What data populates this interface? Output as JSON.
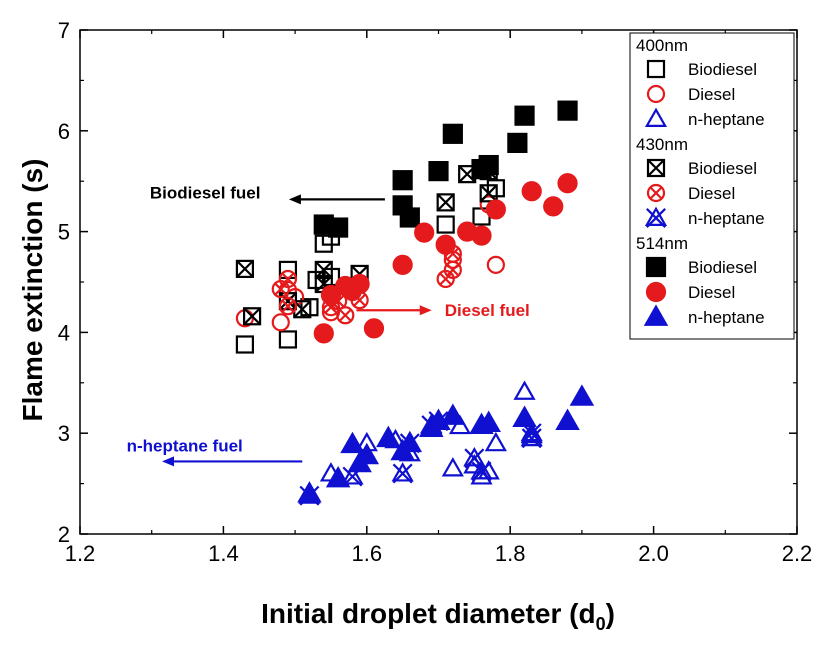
{
  "chart_data": {
    "type": "scatter",
    "xlabel": "Initial droplet diameter (d",
    "xlabel_sub": "0",
    "xlabel_end": ")",
    "ylabel": "Flame extinction (s)",
    "xlim": [
      1.2,
      2.2
    ],
    "ylim": [
      2,
      7
    ],
    "xticks": [
      1.2,
      1.4,
      1.6,
      1.8,
      2.0,
      2.2
    ],
    "yticks": [
      2,
      3,
      4,
      5,
      6,
      7
    ],
    "xtick_labels": [
      "1.2",
      "1.4",
      "1.6",
      "1.8",
      "2.0",
      "2.2"
    ],
    "ytick_labels": [
      "2",
      "3",
      "4",
      "5",
      "6",
      "7"
    ],
    "legend": {
      "placement": "top-right",
      "groups": [
        {
          "title": "400nm",
          "entries": [
            {
              "label": "Biodiesel",
              "marker": "square-open",
              "color": "#000000"
            },
            {
              "label": "Diesel",
              "marker": "circle-open",
              "color": "#e41a1c"
            },
            {
              "label": "n-heptane",
              "marker": "triangle-open",
              "color": "#1010d0"
            }
          ]
        },
        {
          "title": "430nm",
          "entries": [
            {
              "label": "Biodiesel",
              "marker": "square-x",
              "color": "#000000"
            },
            {
              "label": "Diesel",
              "marker": "circle-x",
              "color": "#e41a1c"
            },
            {
              "label": "n-heptane",
              "marker": "triangle-x",
              "color": "#1010d0"
            }
          ]
        },
        {
          "title": "514nm",
          "entries": [
            {
              "label": "Biodiesel",
              "marker": "square-filled",
              "color": "#000000"
            },
            {
              "label": "Diesel",
              "marker": "circle-filled",
              "color": "#e41a1c"
            },
            {
              "label": "n-heptane",
              "marker": "triangle-filled",
              "color": "#1010d0"
            }
          ]
        }
      ]
    },
    "annotations": [
      {
        "text": "Biodiesel fuel",
        "color": "#000000",
        "arrow": "left",
        "x": 1.515,
        "y": 5.3
      },
      {
        "text": "Diesel fuel",
        "color": "#e41a1c",
        "arrow": "right",
        "x": 1.64,
        "y": 4.22
      },
      {
        "text": "n-heptane fuel",
        "color": "#1010d0",
        "arrow": "left",
        "x": 1.265,
        "y": 2.88
      }
    ],
    "series": [
      {
        "name": "400nm Biodiesel",
        "marker": "square-open",
        "color": "#000000",
        "x": [
          1.43,
          1.49,
          1.49,
          1.53,
          1.54,
          1.55,
          1.55,
          1.71,
          1.76,
          1.78,
          1.52
        ],
        "y": [
          3.88,
          3.93,
          4.62,
          4.52,
          4.88,
          4.95,
          4.55,
          5.07,
          5.15,
          5.43,
          4.25
        ]
      },
      {
        "name": "400nm Diesel",
        "marker": "circle-open",
        "color": "#e41a1c",
        "x": [
          1.43,
          1.48,
          1.49,
          1.5,
          1.55,
          1.72,
          1.78,
          1.77,
          1.58
        ],
        "y": [
          4.14,
          4.1,
          4.42,
          4.35,
          4.2,
          4.72,
          4.67,
          5.27,
          4.4
        ]
      },
      {
        "name": "400nm n-heptane",
        "marker": "triangle-open",
        "color": "#1010d0",
        "x": [
          1.55,
          1.6,
          1.64,
          1.69,
          1.72,
          1.73,
          1.75,
          1.76,
          1.77,
          1.78,
          1.82,
          1.83,
          1.66
        ],
        "y": [
          2.6,
          2.9,
          2.93,
          3.07,
          2.65,
          3.07,
          2.68,
          2.57,
          2.62,
          2.9,
          3.41,
          2.98,
          2.8
        ]
      },
      {
        "name": "430nm Biodiesel",
        "marker": "square-x",
        "color": "#000000",
        "x": [
          1.43,
          1.44,
          1.49,
          1.51,
          1.54,
          1.54,
          1.59,
          1.71,
          1.74,
          1.77,
          1.77
        ],
        "y": [
          4.63,
          4.16,
          4.31,
          4.23,
          4.62,
          4.48,
          4.58,
          5.29,
          5.57,
          5.6,
          5.38
        ]
      },
      {
        "name": "430nm Diesel",
        "marker": "circle-x",
        "color": "#e41a1c",
        "x": [
          1.48,
          1.49,
          1.49,
          1.55,
          1.56,
          1.57,
          1.59,
          1.71,
          1.72,
          1.72
        ],
        "y": [
          4.43,
          4.26,
          4.53,
          4.25,
          4.31,
          4.17,
          4.32,
          4.53,
          4.62,
          4.78
        ]
      },
      {
        "name": "430nm n-heptane",
        "marker": "triangle-x",
        "color": "#1010d0",
        "x": [
          1.52,
          1.58,
          1.65,
          1.66,
          1.69,
          1.7,
          1.75,
          1.76,
          1.83,
          1.83
        ],
        "y": [
          2.38,
          2.57,
          2.6,
          2.9,
          3.08,
          3.12,
          2.75,
          2.62,
          3.0,
          2.95
        ]
      },
      {
        "name": "514nm Biodiesel",
        "marker": "square-filled",
        "color": "#000000",
        "x": [
          1.54,
          1.56,
          1.65,
          1.65,
          1.66,
          1.7,
          1.72,
          1.76,
          1.77,
          1.81,
          1.82,
          1.88
        ],
        "y": [
          5.07,
          5.04,
          5.51,
          5.26,
          5.14,
          5.6,
          5.97,
          5.62,
          5.66,
          5.88,
          6.15,
          6.2
        ],
        "note": ""
      },
      {
        "name": "514nm Diesel",
        "marker": "circle-filled",
        "color": "#e41a1c",
        "x": [
          1.54,
          1.55,
          1.57,
          1.58,
          1.59,
          1.61,
          1.65,
          1.68,
          1.71,
          1.74,
          1.76,
          1.78,
          1.83,
          1.86,
          1.88
        ],
        "y": [
          3.99,
          4.37,
          4.46,
          4.43,
          4.48,
          4.04,
          4.67,
          4.99,
          4.87,
          5.0,
          4.96,
          5.22,
          5.4,
          5.25,
          5.48
        ]
      },
      {
        "name": "514nm n-heptane",
        "marker": "triangle-filled",
        "color": "#1010d0",
        "x": [
          1.52,
          1.56,
          1.58,
          1.59,
          1.6,
          1.63,
          1.65,
          1.66,
          1.69,
          1.7,
          1.72,
          1.76,
          1.77,
          1.82,
          1.88,
          1.9
        ],
        "y": [
          2.4,
          2.55,
          2.89,
          2.7,
          2.78,
          2.95,
          2.82,
          2.9,
          3.05,
          3.12,
          3.17,
          3.08,
          3.1,
          3.15,
          3.12,
          3.36
        ]
      }
    ]
  }
}
